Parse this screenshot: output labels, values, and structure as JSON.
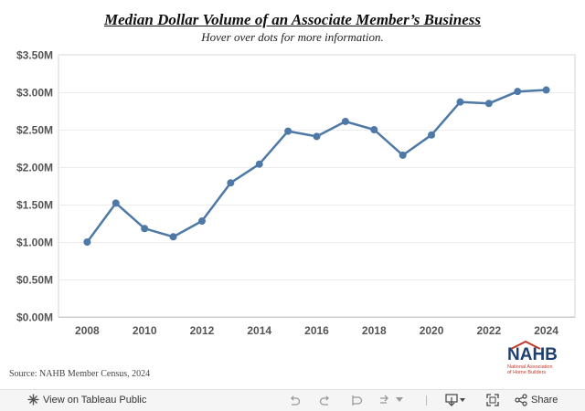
{
  "header": {
    "title": "Median Dollar Volume of an Associate Member’s Business",
    "subtitle": "Hover over dots for more information."
  },
  "chart_data": {
    "type": "line",
    "title": "Median Dollar Volume of an Associate Member’s Business",
    "subtitle": "Hover over dots for more information.",
    "xlabel": "",
    "ylabel": "",
    "x": [
      2008,
      2009,
      2010,
      2011,
      2012,
      2013,
      2014,
      2015,
      2016,
      2017,
      2018,
      2019,
      2020,
      2021,
      2022,
      2023,
      2024
    ],
    "values": [
      1.0,
      1.52,
      1.18,
      1.07,
      1.28,
      1.79,
      2.04,
      2.48,
      2.41,
      2.61,
      2.5,
      2.16,
      2.43,
      2.87,
      2.85,
      3.01,
      3.03
    ],
    "units": "millions USD",
    "ylim": [
      0,
      3.5
    ],
    "xlim": [
      2007,
      2025
    ],
    "y_ticks": [
      0,
      0.5,
      1.0,
      1.5,
      2.0,
      2.5,
      3.0,
      3.5
    ],
    "y_tick_labels": [
      "$0.00M",
      "$0.50M",
      "$1.00M",
      "$1.50M",
      "$2.00M",
      "$2.50M",
      "$3.00M",
      "$3.50M"
    ],
    "x_ticks": [
      2008,
      2010,
      2012,
      2014,
      2016,
      2018,
      2020,
      2022,
      2024
    ],
    "x_tick_labels": [
      "2008",
      "2010",
      "2012",
      "2014",
      "2016",
      "2018",
      "2020",
      "2022",
      "2024"
    ],
    "grid": true,
    "line_color": "#4e79a7"
  },
  "footer": {
    "source": "Source: NAHB Member Census, 2024",
    "logo": {
      "mark": "NAHB",
      "line1": "National Association",
      "line2": "of Home Builders"
    }
  },
  "toolbar": {
    "view_label": "View on Tableau Public",
    "share_label": "Share"
  },
  "colors": {
    "line": "#4e79a7",
    "logo_blue": "#1f3f73",
    "logo_red": "#c0392b"
  }
}
